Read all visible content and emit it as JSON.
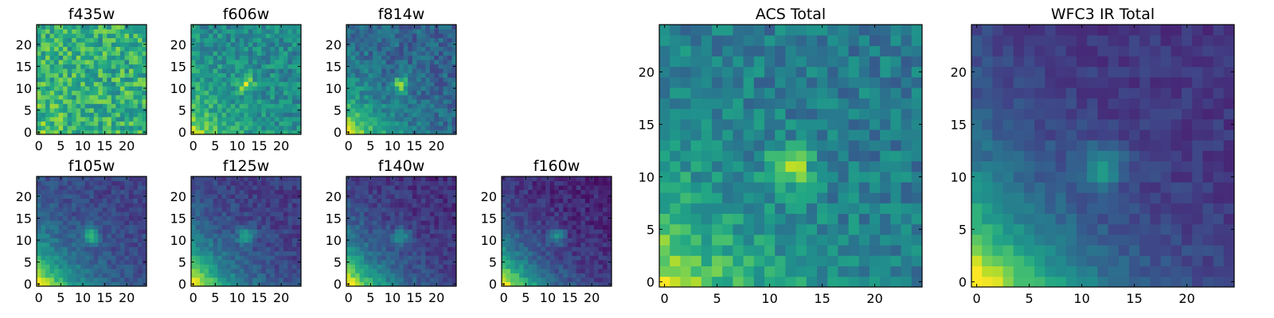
{
  "chart_data": [
    {
      "type": "heatmap",
      "title": "f435w",
      "grid_size": 25,
      "xlim": [
        -0.5,
        24.5
      ],
      "ylim": [
        -0.5,
        24.5
      ],
      "xticks": [
        "0",
        "5",
        "10",
        "15",
        "20"
      ],
      "yticks": [
        "0",
        "5",
        "10",
        "15",
        "20"
      ],
      "colormap": "viridis",
      "background_level": 0.65,
      "noise": 0.2,
      "source_peak": 0.0,
      "source_center": [
        12,
        11
      ],
      "galaxy_strength": 0.1
    },
    {
      "type": "heatmap",
      "title": "f606w",
      "grid_size": 25,
      "xlim": [
        -0.5,
        24.5
      ],
      "ylim": [
        -0.5,
        24.5
      ],
      "xticks": [
        "0",
        "5",
        "10",
        "15",
        "20"
      ],
      "yticks": [
        "0",
        "5",
        "10",
        "15",
        "20"
      ],
      "colormap": "viridis",
      "background_level": 0.55,
      "noise": 0.14,
      "source_peak": 0.35,
      "source_center": [
        12,
        11
      ],
      "galaxy_strength": 0.4
    },
    {
      "type": "heatmap",
      "title": "f814w",
      "grid_size": 25,
      "xlim": [
        -0.5,
        24.5
      ],
      "ylim": [
        -0.5,
        24.5
      ],
      "xticks": [
        "0",
        "5",
        "10",
        "15",
        "20"
      ],
      "yticks": [
        "0",
        "5",
        "10",
        "15",
        "20"
      ],
      "colormap": "viridis",
      "background_level": 0.4,
      "noise": 0.12,
      "source_peak": 0.45,
      "source_center": [
        12,
        11
      ],
      "galaxy_strength": 0.65
    },
    {
      "type": "heatmap",
      "title": "f105w",
      "grid_size": 25,
      "xlim": [
        -0.5,
        24.5
      ],
      "ylim": [
        -0.5,
        24.5
      ],
      "xticks": [
        "0",
        "5",
        "10",
        "15",
        "20"
      ],
      "yticks": [
        "0",
        "5",
        "10",
        "15",
        "20"
      ],
      "colormap": "viridis",
      "background_level": 0.28,
      "noise": 0.08,
      "source_peak": 0.4,
      "source_center": [
        12,
        11
      ],
      "galaxy_strength": 0.85
    },
    {
      "type": "heatmap",
      "title": "f125w",
      "grid_size": 25,
      "xlim": [
        -0.5,
        24.5
      ],
      "ylim": [
        -0.5,
        24.5
      ],
      "xticks": [
        "0",
        "5",
        "10",
        "15",
        "20"
      ],
      "yticks": [
        "0",
        "5",
        "10",
        "15",
        "20"
      ],
      "colormap": "viridis",
      "background_level": 0.25,
      "noise": 0.08,
      "source_peak": 0.35,
      "source_center": [
        12,
        11
      ],
      "galaxy_strength": 0.9
    },
    {
      "type": "heatmap",
      "title": "f140w",
      "grid_size": 25,
      "xlim": [
        -0.5,
        24.5
      ],
      "ylim": [
        -0.5,
        24.5
      ],
      "xticks": [
        "0",
        "5",
        "10",
        "15",
        "20"
      ],
      "yticks": [
        "0",
        "5",
        "10",
        "15",
        "20"
      ],
      "colormap": "viridis",
      "background_level": 0.2,
      "noise": 0.08,
      "source_peak": 0.32,
      "source_center": [
        12,
        11
      ],
      "galaxy_strength": 0.92
    },
    {
      "type": "heatmap",
      "title": "f160w",
      "grid_size": 25,
      "xlim": [
        -0.5,
        24.5
      ],
      "ylim": [
        -0.5,
        24.5
      ],
      "xticks": [
        "0",
        "5",
        "10",
        "15",
        "20"
      ],
      "yticks": [
        "0",
        "5",
        "10",
        "15",
        "20"
      ],
      "colormap": "viridis",
      "background_level": 0.15,
      "noise": 0.08,
      "source_peak": 0.32,
      "source_center": [
        12,
        11
      ],
      "galaxy_strength": 0.95
    },
    {
      "type": "heatmap",
      "title": "ACS Total",
      "grid_size": 25,
      "xlim": [
        -0.5,
        24.5
      ],
      "ylim": [
        -0.5,
        24.5
      ],
      "xticks": [
        "0",
        "5",
        "10",
        "15",
        "20"
      ],
      "yticks": [
        "0",
        "5",
        "10",
        "15",
        "20"
      ],
      "colormap": "viridis",
      "background_level": 0.5,
      "noise": 0.13,
      "source_peak": 0.45,
      "source_center": [
        12,
        11
      ],
      "galaxy_strength": 0.55
    },
    {
      "type": "heatmap",
      "title": "WFC3 IR Total",
      "grid_size": 25,
      "xlim": [
        -0.5,
        24.5
      ],
      "ylim": [
        -0.5,
        24.5
      ],
      "xticks": [
        "0",
        "5",
        "10",
        "15",
        "20"
      ],
      "yticks": [
        "0",
        "5",
        "10",
        "15",
        "20"
      ],
      "colormap": "viridis",
      "background_level": 0.22,
      "noise": 0.06,
      "source_peak": 0.35,
      "source_center": [
        12,
        11
      ],
      "galaxy_strength": 0.95
    }
  ]
}
